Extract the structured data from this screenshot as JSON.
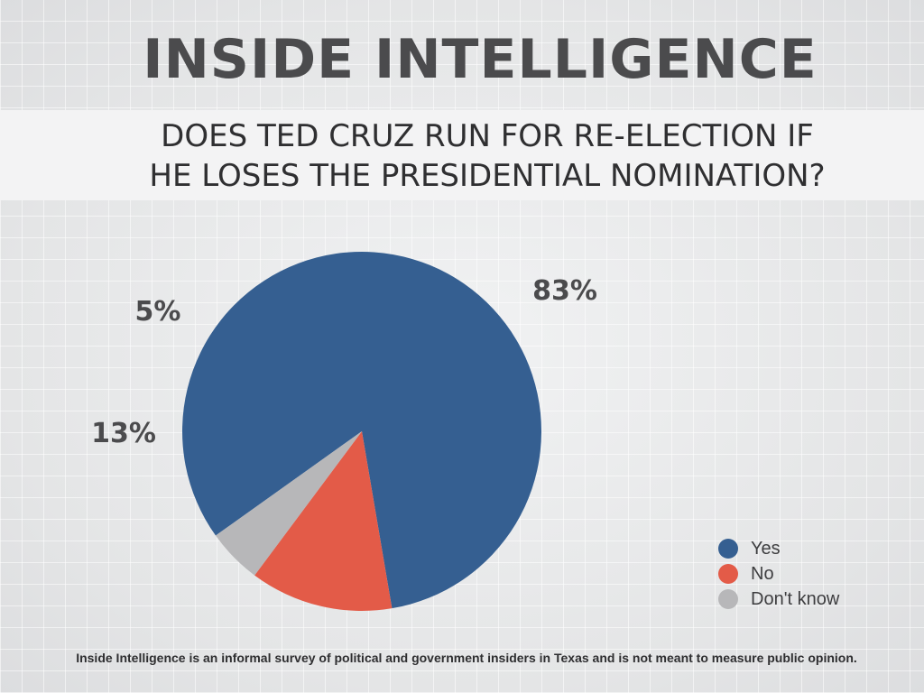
{
  "header": {
    "title": "INSIDE INTELLIGENCE",
    "question_line1": "DOES TED CRUZ RUN FOR RE-ELECTION IF",
    "question_line2": "HE LOSES THE PRESIDENTIAL NOMINATION?"
  },
  "chart_data": {
    "type": "pie",
    "title": "DOES TED CRUZ RUN FOR RE-ELECTION IF HE LOSES THE PRESIDENTIAL NOMINATION?",
    "legend_position": "bottom-right",
    "slices": [
      {
        "name": "Yes",
        "value": 83,
        "label": "83%",
        "color": "#355f91"
      },
      {
        "name": "No",
        "value": 13,
        "label": "13%",
        "color": "#e35b48"
      },
      {
        "name": "Don't know",
        "value": 5,
        "label": "5%",
        "color": "#b7b7b9"
      }
    ]
  },
  "footnote": "Inside Intelligence is an informal survey of political and government insiders in Texas and is not meant to measure public opinion."
}
